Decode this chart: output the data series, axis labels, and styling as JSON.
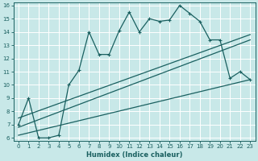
{
  "xlabel": "Humidex (Indice chaleur)",
  "bg_color": "#c8e8e8",
  "grid_color": "#ffffff",
  "line_color": "#1a6060",
  "xlim": [
    -0.5,
    23.5
  ],
  "ylim": [
    5.8,
    16.2
  ],
  "xticks": [
    0,
    1,
    2,
    3,
    4,
    5,
    6,
    7,
    8,
    9,
    10,
    11,
    12,
    13,
    14,
    15,
    16,
    17,
    18,
    19,
    20,
    21,
    22,
    23
  ],
  "yticks": [
    6,
    7,
    8,
    9,
    10,
    11,
    12,
    13,
    14,
    15,
    16
  ],
  "line1_x": [
    0,
    1,
    2,
    3,
    4,
    5,
    6,
    7,
    8,
    9,
    10,
    11,
    12,
    13,
    14,
    15,
    16,
    17,
    18,
    19,
    20,
    21,
    22,
    23
  ],
  "line1_y": [
    7.0,
    9.0,
    6.0,
    6.0,
    6.2,
    10.0,
    11.1,
    14.0,
    12.3,
    12.3,
    14.1,
    15.5,
    14.0,
    15.0,
    14.8,
    14.9,
    16.0,
    15.4,
    14.8,
    13.4,
    13.4,
    10.5,
    11.0,
    10.4
  ],
  "line2_x": [
    0,
    23
  ],
  "line2_y": [
    6.2,
    10.4
  ],
  "line3_x": [
    0,
    23
  ],
  "line3_y": [
    6.8,
    13.4
  ],
  "line4_x": [
    0,
    23
  ],
  "line4_y": [
    7.5,
    13.8
  ]
}
